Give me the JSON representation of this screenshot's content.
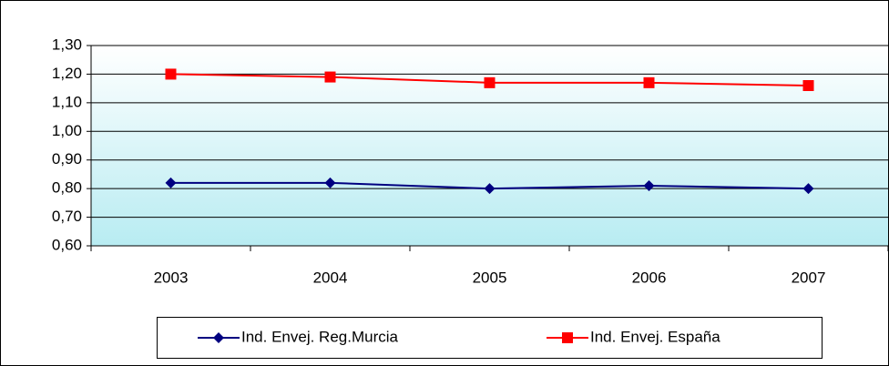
{
  "chart_data": {
    "type": "line",
    "categories": [
      "2003",
      "2004",
      "2005",
      "2006",
      "2007"
    ],
    "series": [
      {
        "name": "Ind. Envej. Reg.Murcia",
        "color": "#000080",
        "marker": "diamond",
        "values": [
          0.82,
          0.82,
          0.8,
          0.81,
          0.8
        ]
      },
      {
        "name": "Ind. Envej. España",
        "color": "#ff0000",
        "marker": "square",
        "values": [
          1.2,
          1.19,
          1.17,
          1.17,
          1.16
        ]
      }
    ],
    "ylim": [
      0.6,
      1.3
    ],
    "yticks": [
      {
        "value": 0.6,
        "label": "0,60"
      },
      {
        "value": 0.7,
        "label": "0,70"
      },
      {
        "value": 0.8,
        "label": "0,80"
      },
      {
        "value": 0.9,
        "label": "0,90"
      },
      {
        "value": 1.0,
        "label": "1,00"
      },
      {
        "value": 1.1,
        "label": "1,10"
      },
      {
        "value": 1.2,
        "label": "1,20"
      },
      {
        "value": 1.3,
        "label": "1,30"
      }
    ],
    "grid": true,
    "legend": "bottom"
  }
}
